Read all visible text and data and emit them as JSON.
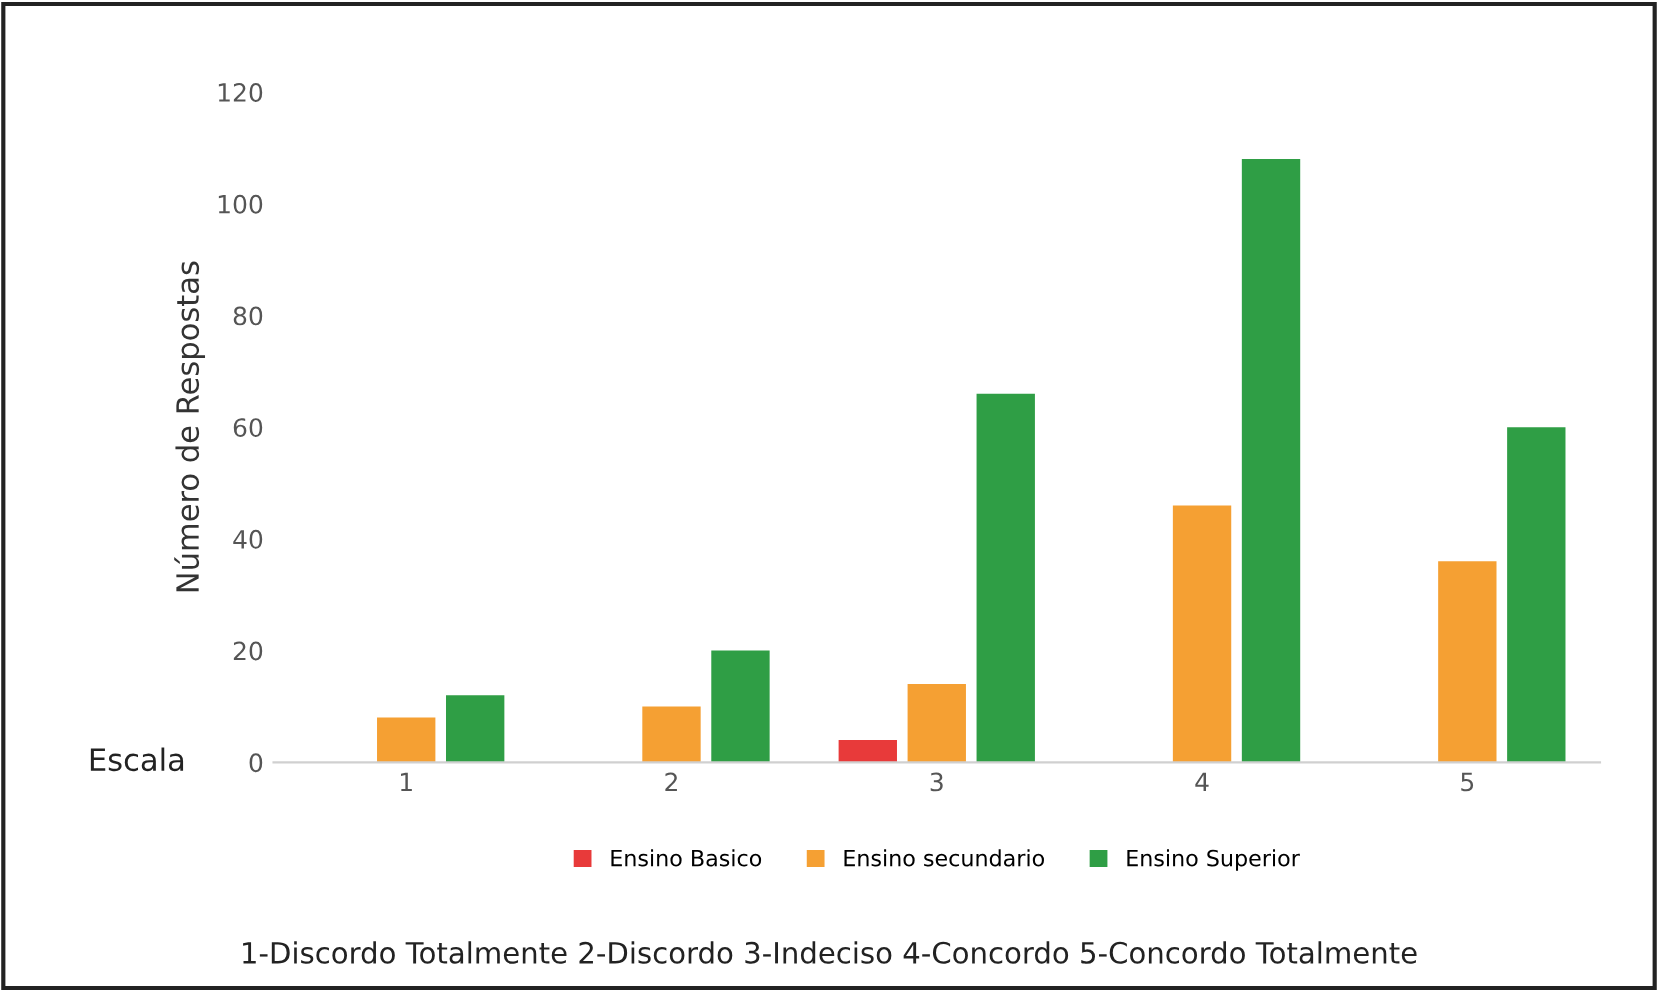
{
  "chart_data": {
    "type": "bar",
    "ylabel": "Número de Respostas",
    "categories": [
      "1",
      "2",
      "3",
      "4",
      "5"
    ],
    "series": [
      {
        "name": "Ensino Basico",
        "color": "#e83a3a",
        "values": [
          0,
          0,
          4,
          0,
          0
        ]
      },
      {
        "name": "Ensino secundario",
        "color": "#f5a033",
        "values": [
          8,
          10,
          14,
          46,
          36
        ]
      },
      {
        "name": "Ensino Superior",
        "color": "#2f9e45",
        "values": [
          12,
          20,
          66,
          108,
          60
        ]
      }
    ],
    "ylim": [
      0,
      120
    ],
    "yticks": [
      0,
      20,
      40,
      60,
      80,
      100,
      120
    ],
    "grid": false,
    "legend": "bottom",
    "annotations": [
      "Escala",
      "1-Discordo Totalmente 2-Discordo 3-Indeciso 4-Concordo 5-Concordo Totalmente"
    ]
  }
}
